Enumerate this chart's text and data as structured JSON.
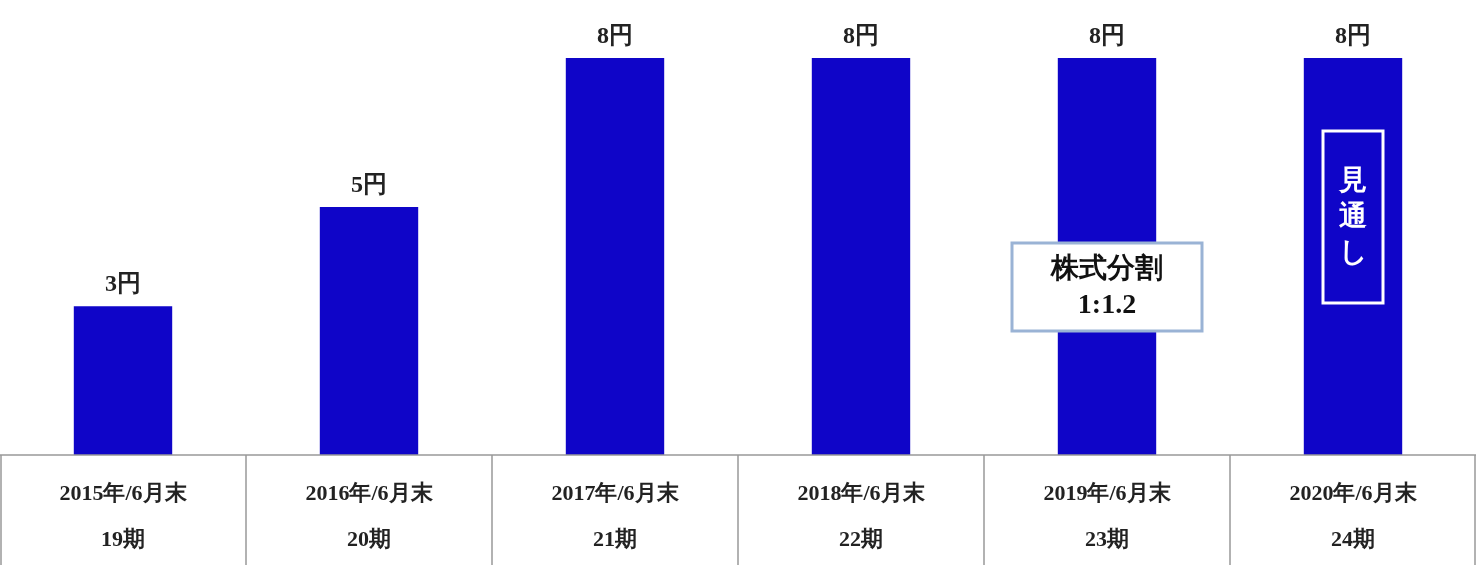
{
  "chart_data": {
    "type": "bar",
    "categories": [
      "2015年/6月末\n19期",
      "2016年/6月末\n20期",
      "2017年/6月末\n21期",
      "2018年/6月末\n22期",
      "2019年/6月末\n23期",
      "2020年/6月末\n24期"
    ],
    "values": [
      3,
      5,
      8,
      8,
      8,
      8
    ],
    "value_labels": [
      "3円",
      "5円",
      "8円",
      "8円",
      "8円",
      "8円"
    ],
    "color": "#0f05c8",
    "annotations": [
      "株式分割\n1:1.2",
      "見通し"
    ]
  }
}
